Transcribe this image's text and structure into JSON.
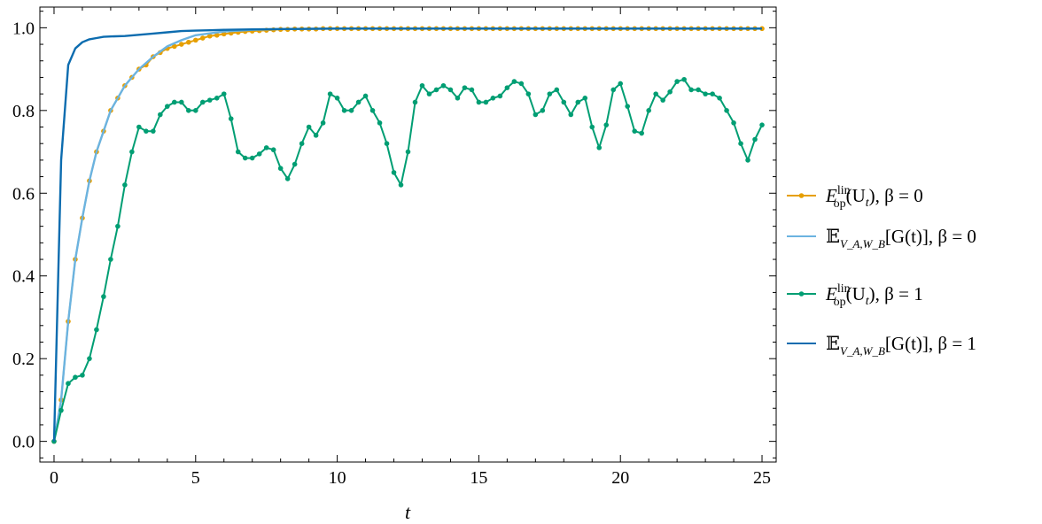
{
  "chart_data": {
    "type": "line",
    "title": "",
    "xlabel": "t",
    "ylabel": "",
    "xlim": [
      -0.5,
      25.5
    ],
    "ylim": [
      -0.05,
      1.05
    ],
    "xticks": [
      0,
      5,
      10,
      15,
      20,
      25
    ],
    "xtick_labels": [
      "0",
      "5",
      "10",
      "15",
      "20",
      "25"
    ],
    "yticks": [
      0.0,
      0.2,
      0.4,
      0.6,
      0.8,
      1.0
    ],
    "ytick_labels": [
      "0.0",
      "0.2",
      "0.4",
      "0.6",
      "0.8",
      "1.0"
    ],
    "grid": false,
    "legend_position": "right",
    "series": [
      {
        "name": "E_op^lin(U_t), β = 0",
        "legend": {
          "main": "E",
          "sup": "lin",
          "sub": "op",
          "rest": "(U",
          "sub2": "t",
          "tail": "),  β = 0"
        },
        "color": "#E69F00",
        "marker": true,
        "x_start": 0,
        "x_step": 0.25,
        "values": [
          0.0,
          0.1,
          0.29,
          0.44,
          0.54,
          0.63,
          0.7,
          0.75,
          0.8,
          0.83,
          0.86,
          0.88,
          0.9,
          0.91,
          0.93,
          0.94,
          0.95,
          0.955,
          0.96,
          0.965,
          0.97,
          0.975,
          0.98,
          0.982,
          0.985,
          0.987,
          0.989,
          0.991,
          0.992,
          0.993,
          0.994,
          0.995,
          0.996,
          0.996,
          0.997,
          0.997,
          0.997,
          0.997,
          0.998,
          0.998,
          0.998,
          0.998,
          0.998,
          0.998,
          0.998,
          0.998,
          0.998,
          0.998,
          0.998,
          0.998,
          0.998,
          0.998,
          0.998,
          0.998,
          0.998,
          0.998,
          0.998,
          0.998,
          0.998,
          0.998,
          0.998,
          0.998,
          0.998,
          0.998,
          0.998,
          0.998,
          0.998,
          0.998,
          0.998,
          0.998,
          0.998,
          0.998,
          0.998,
          0.998,
          0.998,
          0.998,
          0.998,
          0.998,
          0.998,
          0.998,
          0.998,
          0.998,
          0.998,
          0.998,
          0.998,
          0.998,
          0.998,
          0.998,
          0.998,
          0.998,
          0.998,
          0.998,
          0.998,
          0.998,
          0.998,
          0.998,
          0.998,
          0.998,
          0.998,
          0.998,
          0.998
        ]
      },
      {
        "name": "E_{V_A,W_B}[G(t)], β = 0",
        "legend": {
          "main": "𝔼",
          "sub": "V_A,W_B",
          "rest": "[G(t)],  β = 0"
        },
        "color": "#6BB3E0",
        "marker": false,
        "x": [
          0,
          0.25,
          0.5,
          0.75,
          1,
          1.25,
          1.5,
          1.75,
          2,
          2.25,
          2.5,
          2.75,
          3,
          3.5,
          4,
          4.5,
          5,
          6,
          7,
          8,
          10,
          15,
          20,
          25
        ],
        "values": [
          0.0,
          0.1,
          0.29,
          0.44,
          0.54,
          0.63,
          0.7,
          0.75,
          0.8,
          0.83,
          0.86,
          0.88,
          0.9,
          0.93,
          0.955,
          0.97,
          0.982,
          0.991,
          0.995,
          0.997,
          0.998,
          0.998,
          0.998,
          0.998
        ]
      },
      {
        "name": "E_op^lin(U_t), β = 1",
        "legend": {
          "main": "E",
          "sup": "lin",
          "sub": "op",
          "rest": "(U",
          "sub2": "t",
          "tail": "),  β = 1"
        },
        "color": "#009E73",
        "marker": true,
        "x_start": 0,
        "x_step": 0.25,
        "values": [
          0.0,
          0.075,
          0.14,
          0.155,
          0.16,
          0.2,
          0.27,
          0.35,
          0.44,
          0.52,
          0.62,
          0.7,
          0.76,
          0.75,
          0.75,
          0.79,
          0.81,
          0.82,
          0.82,
          0.8,
          0.8,
          0.82,
          0.825,
          0.83,
          0.84,
          0.78,
          0.7,
          0.685,
          0.685,
          0.695,
          0.71,
          0.705,
          0.66,
          0.635,
          0.67,
          0.72,
          0.76,
          0.74,
          0.77,
          0.84,
          0.83,
          0.8,
          0.8,
          0.82,
          0.835,
          0.8,
          0.77,
          0.72,
          0.65,
          0.62,
          0.7,
          0.82,
          0.86,
          0.84,
          0.85,
          0.86,
          0.85,
          0.83,
          0.855,
          0.85,
          0.82,
          0.82,
          0.83,
          0.835,
          0.855,
          0.87,
          0.865,
          0.84,
          0.79,
          0.8,
          0.84,
          0.85,
          0.82,
          0.79,
          0.82,
          0.83,
          0.76,
          0.71,
          0.765,
          0.85,
          0.865,
          0.81,
          0.75,
          0.745,
          0.8,
          0.84,
          0.825,
          0.845,
          0.87,
          0.875,
          0.85,
          0.85,
          0.84,
          0.84,
          0.83,
          0.8,
          0.77,
          0.72,
          0.68,
          0.73,
          0.765
        ]
      },
      {
        "name": "E_{V_A,W_B}[G(t)], β = 1",
        "legend": {
          "main": "𝔼",
          "sub": "V_A,W_B",
          "rest": "[G(t)],  β = 1"
        },
        "color": "#0C6CAF",
        "marker": false,
        "x": [
          0,
          0.25,
          0.5,
          0.75,
          1,
          1.25,
          1.5,
          1.75,
          2,
          2.5,
          3,
          3.5,
          4,
          4.5,
          5,
          5.5,
          6,
          7,
          8,
          10,
          15,
          20,
          25
        ],
        "values": [
          0.0,
          0.68,
          0.91,
          0.95,
          0.965,
          0.972,
          0.975,
          0.978,
          0.979,
          0.98,
          0.983,
          0.986,
          0.989,
          0.992,
          0.993,
          0.994,
          0.995,
          0.996,
          0.997,
          0.998,
          0.998,
          0.998,
          0.998
        ]
      }
    ]
  }
}
